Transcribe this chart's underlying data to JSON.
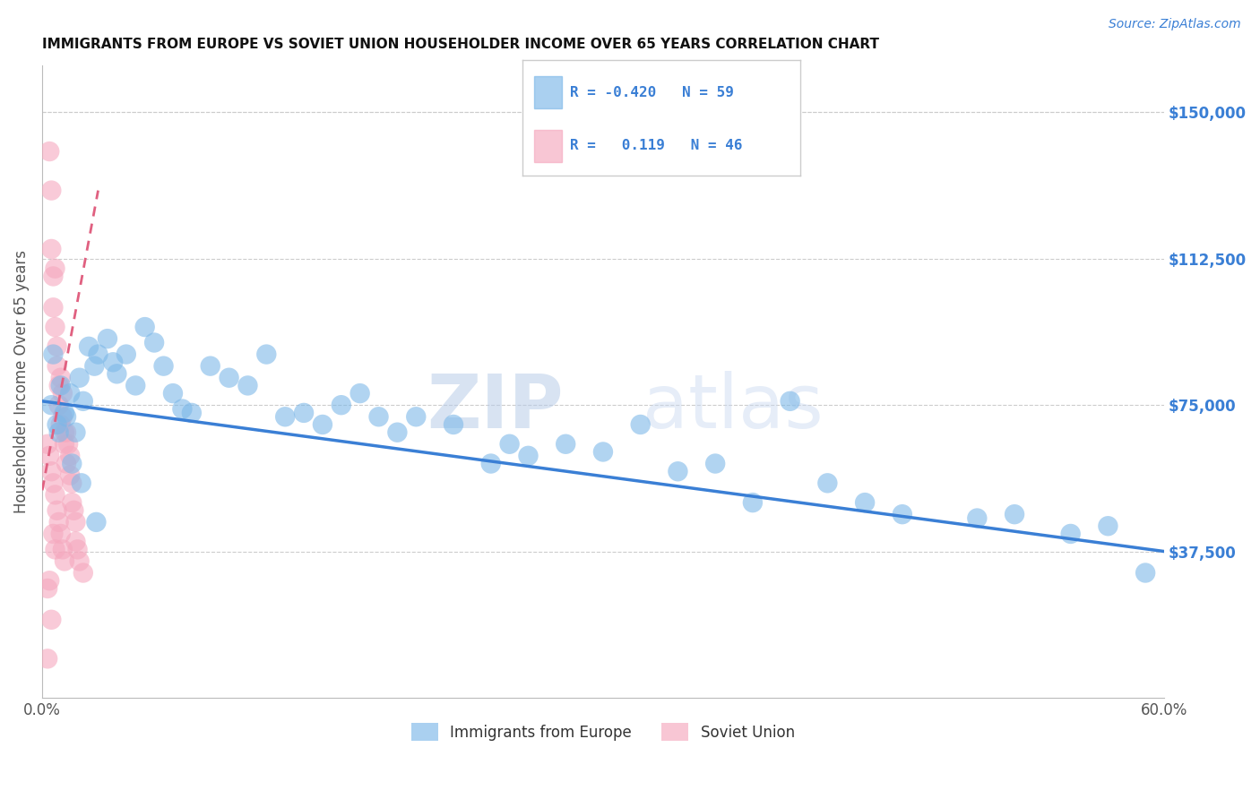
{
  "title": "IMMIGRANTS FROM EUROPE VS SOVIET UNION HOUSEHOLDER INCOME OVER 65 YEARS CORRELATION CHART",
  "source": "Source: ZipAtlas.com",
  "ylabel": "Householder Income Over 65 years",
  "xlim": [
    0.0,
    0.6
  ],
  "ylim": [
    0,
    162000
  ],
  "xticks": [
    0.0,
    0.1,
    0.2,
    0.3,
    0.4,
    0.5,
    0.6
  ],
  "xticklabels": [
    "0.0%",
    "",
    "",
    "",
    "",
    "",
    "60.0%"
  ],
  "yticks_right": [
    37500,
    75000,
    112500,
    150000
  ],
  "ytick_labels_right": [
    "$37,500",
    "$75,000",
    "$112,500",
    "$150,000"
  ],
  "blue_color": "#7db8e8",
  "pink_color": "#f5a8be",
  "blue_line_color": "#3a7fd5",
  "pink_line_color": "#e06080",
  "watermark_zip": "ZIP",
  "watermark_atlas": "atlas",
  "blue_scatter_x": [
    0.005,
    0.008,
    0.01,
    0.012,
    0.015,
    0.018,
    0.02,
    0.022,
    0.025,
    0.028,
    0.03,
    0.035,
    0.038,
    0.04,
    0.045,
    0.05,
    0.055,
    0.06,
    0.065,
    0.07,
    0.075,
    0.08,
    0.09,
    0.1,
    0.11,
    0.12,
    0.13,
    0.14,
    0.15,
    0.16,
    0.17,
    0.18,
    0.19,
    0.2,
    0.22,
    0.24,
    0.25,
    0.26,
    0.28,
    0.3,
    0.32,
    0.34,
    0.36,
    0.38,
    0.4,
    0.42,
    0.44,
    0.46,
    0.5,
    0.52,
    0.55,
    0.57,
    0.006,
    0.009,
    0.013,
    0.016,
    0.021,
    0.029,
    0.59
  ],
  "blue_scatter_y": [
    75000,
    70000,
    80000,
    73000,
    78000,
    68000,
    82000,
    76000,
    90000,
    85000,
    88000,
    92000,
    86000,
    83000,
    88000,
    80000,
    95000,
    91000,
    85000,
    78000,
    74000,
    73000,
    85000,
    82000,
    80000,
    88000,
    72000,
    73000,
    70000,
    75000,
    78000,
    72000,
    68000,
    72000,
    70000,
    60000,
    65000,
    62000,
    65000,
    63000,
    70000,
    58000,
    60000,
    50000,
    76000,
    55000,
    50000,
    47000,
    46000,
    47000,
    42000,
    44000,
    88000,
    68000,
    72000,
    60000,
    55000,
    45000,
    32000
  ],
  "pink_scatter_x": [
    0.004,
    0.005,
    0.005,
    0.006,
    0.006,
    0.007,
    0.007,
    0.008,
    0.008,
    0.009,
    0.009,
    0.01,
    0.01,
    0.011,
    0.011,
    0.012,
    0.012,
    0.013,
    0.013,
    0.014,
    0.015,
    0.015,
    0.016,
    0.016,
    0.017,
    0.018,
    0.018,
    0.019,
    0.02,
    0.022,
    0.003,
    0.004,
    0.005,
    0.006,
    0.007,
    0.008,
    0.009,
    0.01,
    0.011,
    0.012,
    0.003,
    0.004,
    0.006,
    0.007,
    0.005,
    0.003
  ],
  "pink_scatter_y": [
    140000,
    130000,
    115000,
    108000,
    100000,
    95000,
    110000,
    90000,
    85000,
    80000,
    75000,
    82000,
    70000,
    72000,
    78000,
    65000,
    68000,
    60000,
    68000,
    65000,
    62000,
    57000,
    50000,
    55000,
    48000,
    45000,
    40000,
    38000,
    35000,
    32000,
    65000,
    62000,
    58000,
    55000,
    52000,
    48000,
    45000,
    42000,
    38000,
    35000,
    28000,
    30000,
    42000,
    38000,
    20000,
    10000
  ],
  "blue_trend_x": [
    0.0,
    0.6
  ],
  "blue_trend_y": [
    76000,
    37500
  ],
  "pink_trend_x": [
    -0.005,
    0.03
  ],
  "pink_trend_y": [
    40000,
    130000
  ]
}
